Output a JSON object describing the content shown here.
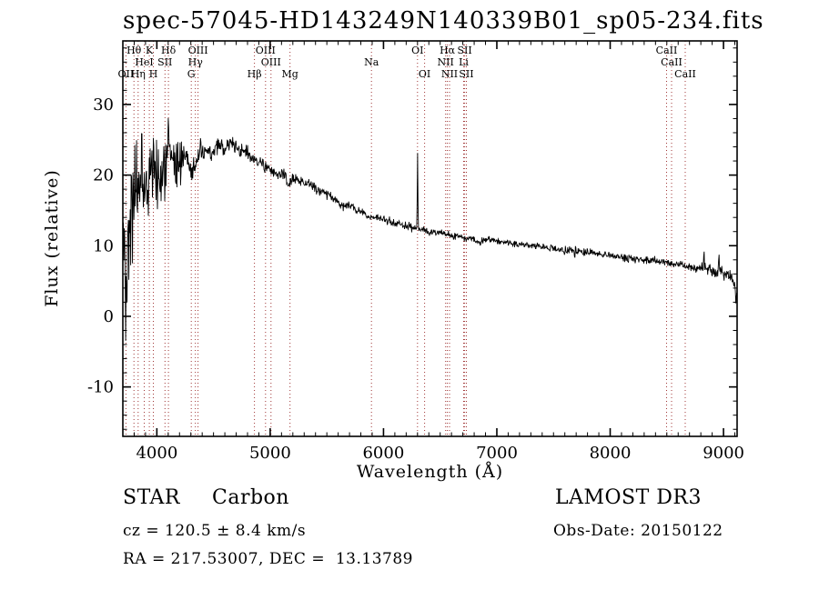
{
  "title": "spec-57045-HD143249N140339B01_sp05-234.fits",
  "annotations": {
    "class": "STAR",
    "subclass": "Carbon",
    "survey": "LAMOST DR3",
    "cz": "cz = 120.5 ± 8.4 km/s",
    "obs_date": "Obs-Date: 20150122",
    "radec": "RA = 217.53007, DEC =  13.13789"
  },
  "chart_data": {
    "type": "line",
    "title": "spec-57045-HD143249N140339B01_sp05-234.fits",
    "xlabel": "Wavelength (Å)",
    "ylabel": "Flux (relative)",
    "xlim": [
      3700,
      9120
    ],
    "ylim": [
      -17,
      39
    ],
    "xticks": [
      4000,
      5000,
      6000,
      7000,
      8000,
      9000
    ],
    "yticks": [
      -10,
      0,
      10,
      20,
      30
    ],
    "x_minor_step": 100,
    "y_minor_step": 2,
    "grid": false,
    "legend": "none",
    "line_color": "#000000",
    "marker_color": "#a03535",
    "spectral_lines": [
      {
        "label": "OII",
        "wl": 3727,
        "row": 3
      },
      {
        "label": "Hθ",
        "wl": 3798,
        "row": 1
      },
      {
        "label": "Hη",
        "wl": 3835,
        "row": 3
      },
      {
        "label": "HeI",
        "wl": 3889,
        "row": 2
      },
      {
        "label": "K",
        "wl": 3934,
        "row": 1
      },
      {
        "label": "H",
        "wl": 3969,
        "row": 3
      },
      {
        "label": "SII",
        "wl": 4072,
        "row": 2
      },
      {
        "label": "Hδ",
        "wl": 4102,
        "row": 1
      },
      {
        "label": "G",
        "wl": 4304,
        "row": 3
      },
      {
        "label": "Hγ",
        "wl": 4340,
        "row": 2
      },
      {
        "label": "OIII",
        "wl": 4363,
        "row": 1
      },
      {
        "label": "Hβ",
        "wl": 4861,
        "row": 3
      },
      {
        "label": "OIII",
        "wl": 4959,
        "row": 1
      },
      {
        "label": "OIII",
        "wl": 5007,
        "row": 2
      },
      {
        "label": "Mg",
        "wl": 5175,
        "row": 3
      },
      {
        "label": "Na",
        "wl": 5894,
        "row": 2
      },
      {
        "label": "OI",
        "wl": 6300,
        "row": 1
      },
      {
        "label": "OI",
        "wl": 6363,
        "row": 3
      },
      {
        "label": "NII",
        "wl": 6548,
        "row": 2
      },
      {
        "label": "Hα",
        "wl": 6563,
        "row": 1
      },
      {
        "label": "NII",
        "wl": 6583,
        "row": 3
      },
      {
        "label": "Li",
        "wl": 6707,
        "row": 2
      },
      {
        "label": "SII",
        "wl": 6716,
        "row": 1
      },
      {
        "label": "SII",
        "wl": 6731,
        "row": 3
      },
      {
        "label": "CaII",
        "wl": 8498,
        "row": 1
      },
      {
        "label": "CaII",
        "wl": 8542,
        "row": 2
      },
      {
        "label": "CaII",
        "wl": 8662,
        "row": 3
      }
    ],
    "envelope": [
      [
        3705,
        9
      ],
      [
        3740,
        12
      ],
      [
        3780,
        16
      ],
      [
        3820,
        17
      ],
      [
        3860,
        19
      ],
      [
        3900,
        19
      ],
      [
        3940,
        20
      ],
      [
        3980,
        20
      ],
      [
        4020,
        20
      ],
      [
        4060,
        21
      ],
      [
        4100,
        22
      ],
      [
        4150,
        21.5
      ],
      [
        4200,
        22
      ],
      [
        4260,
        23
      ],
      [
        4300,
        20.5
      ],
      [
        4340,
        21.5
      ],
      [
        4380,
        22.8
      ],
      [
        4440,
        23.3
      ],
      [
        4500,
        23.2
      ],
      [
        4550,
        24.2
      ],
      [
        4600,
        23.8
      ],
      [
        4650,
        24.5
      ],
      [
        4700,
        24.2
      ],
      [
        4740,
        23.2
      ],
      [
        4780,
        23.5
      ],
      [
        4820,
        22.7
      ],
      [
        4861,
        21.9
      ],
      [
        4900,
        22.0
      ],
      [
        4950,
        21.2
      ],
      [
        5000,
        20.6
      ],
      [
        5060,
        20.2
      ],
      [
        5120,
        20.0
      ],
      [
        5165,
        18.5
      ],
      [
        5210,
        19.7
      ],
      [
        5270,
        19.2
      ],
      [
        5330,
        18.8
      ],
      [
        5390,
        18.3
      ],
      [
        5450,
        17.8
      ],
      [
        5510,
        17.2
      ],
      [
        5570,
        16.6
      ],
      [
        5635,
        15.7
      ],
      [
        5700,
        15.7
      ],
      [
        5760,
        15.1
      ],
      [
        5830,
        14.6
      ],
      [
        5894,
        13.9
      ],
      [
        5950,
        14.0
      ],
      [
        6020,
        13.6
      ],
      [
        6090,
        13.3
      ],
      [
        6160,
        13.0
      ],
      [
        6230,
        12.7
      ],
      [
        6300,
        12.4
      ],
      [
        6380,
        12.1
      ],
      [
        6460,
        11.9
      ],
      [
        6540,
        11.6
      ],
      [
        6620,
        11.4
      ],
      [
        6700,
        11.2
      ],
      [
        6780,
        11.0
      ],
      [
        6855,
        10.4
      ],
      [
        6890,
        10.9
      ],
      [
        6960,
        10.8
      ],
      [
        7040,
        10.6
      ],
      [
        7120,
        10.4
      ],
      [
        7200,
        10.1
      ],
      [
        7280,
        10.1
      ],
      [
        7360,
        9.9
      ],
      [
        7440,
        9.7
      ],
      [
        7520,
        9.5
      ],
      [
        7600,
        9.2
      ],
      [
        7680,
        9.4
      ],
      [
        7760,
        9.1
      ],
      [
        7840,
        9.0
      ],
      [
        7920,
        8.8
      ],
      [
        8000,
        8.6
      ],
      [
        8080,
        8.4
      ],
      [
        8160,
        8.2
      ],
      [
        8240,
        8.1
      ],
      [
        8320,
        8.0
      ],
      [
        8400,
        7.8
      ],
      [
        8480,
        7.6
      ],
      [
        8560,
        7.4
      ],
      [
        8640,
        7.2
      ],
      [
        8720,
        7.0
      ],
      [
        8800,
        6.9
      ],
      [
        8880,
        6.6
      ],
      [
        8960,
        6.2
      ],
      [
        9040,
        5.8
      ],
      [
        9080,
        5.3
      ],
      [
        9100,
        4.5
      ],
      [
        9110,
        2.0
      ],
      [
        9118,
        3.5
      ]
    ],
    "noise": [
      [
        3705,
        16
      ],
      [
        3760,
        14
      ],
      [
        3800,
        12
      ],
      [
        3840,
        10
      ],
      [
        3880,
        9
      ],
      [
        3920,
        8
      ],
      [
        3960,
        7.5
      ],
      [
        4000,
        7
      ],
      [
        4060,
        6.5
      ],
      [
        4100,
        6
      ],
      [
        4160,
        5
      ],
      [
        4220,
        4
      ],
      [
        4280,
        3.2
      ],
      [
        4340,
        2.8
      ],
      [
        4400,
        2.4
      ],
      [
        4500,
        2.0
      ],
      [
        4600,
        1.8
      ],
      [
        4700,
        1.6
      ],
      [
        4800,
        1.5
      ],
      [
        4900,
        1.4
      ],
      [
        5000,
        1.3
      ],
      [
        5100,
        1.2
      ],
      [
        5300,
        1.1
      ],
      [
        5500,
        1.0
      ],
      [
        5700,
        0.95
      ],
      [
        5900,
        0.85
      ],
      [
        6100,
        0.8
      ],
      [
        6300,
        0.8
      ],
      [
        6500,
        0.75
      ],
      [
        6700,
        0.7
      ],
      [
        6900,
        0.7
      ],
      [
        7100,
        0.7
      ],
      [
        7300,
        0.7
      ],
      [
        7500,
        0.8
      ],
      [
        7620,
        1.0
      ],
      [
        7680,
        1.4
      ],
      [
        7740,
        1.0
      ],
      [
        7900,
        0.8
      ],
      [
        8100,
        0.8
      ],
      [
        8300,
        0.8
      ],
      [
        8500,
        0.85
      ],
      [
        8700,
        0.95
      ],
      [
        8800,
        1.1
      ],
      [
        8900,
        1.3
      ],
      [
        9000,
        1.4
      ],
      [
        9118,
        1.8
      ]
    ],
    "spikes": [
      {
        "wl": 3725,
        "peak": -6.5,
        "width": 5
      },
      {
        "wl": 3866,
        "peak": 28.5,
        "width": 5
      },
      {
        "wl": 4102,
        "peak": 29.0,
        "width": 5
      },
      {
        "wl": 6301,
        "peak": 23.0,
        "width": 6
      },
      {
        "wl": 8827,
        "peak": 9.8,
        "width": 7
      },
      {
        "wl": 8960,
        "peak": 9.0,
        "width": 6
      }
    ]
  }
}
